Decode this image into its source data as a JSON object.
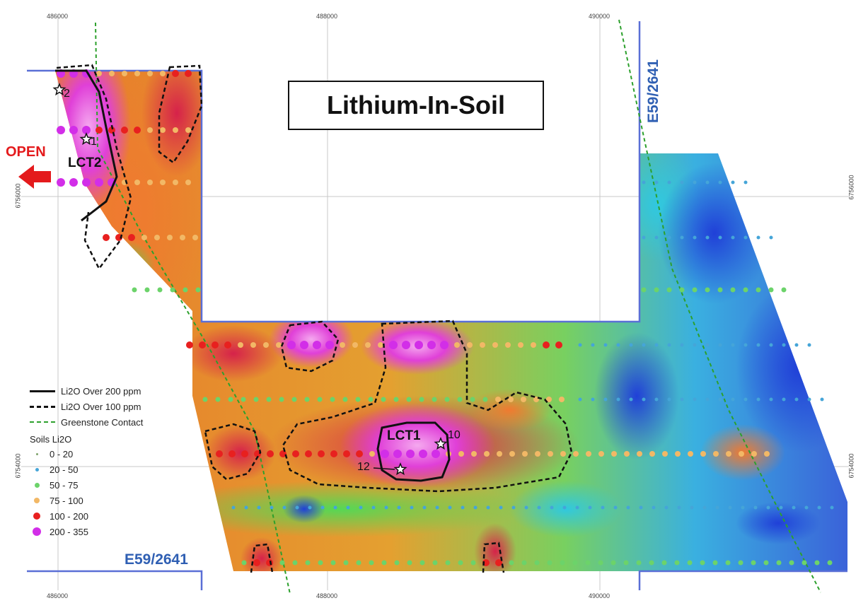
{
  "title": "Lithium-In-Soil",
  "open_label": "OPEN",
  "lease_labels": [
    "E59/2641",
    "E59/2641"
  ],
  "grid": {
    "eastings": [
      "486000",
      "488000",
      "490000"
    ],
    "northings": [
      "6756000",
      "6754000"
    ]
  },
  "anomalies": [
    {
      "name": "LCT2"
    },
    {
      "name": "LCT1"
    }
  ],
  "stars": [
    "2",
    "1",
    "10",
    "12"
  ],
  "legend": {
    "lines": [
      {
        "label": "Li2O Over 200 ppm",
        "style": "solid",
        "color": "#111111"
      },
      {
        "label": "Li2O Over 100 ppm",
        "style": "dashed",
        "color": "#111111"
      },
      {
        "label": "Greenstone Contact",
        "style": "dashed",
        "color": "#2ca02c"
      }
    ],
    "soils_title": "Soils Li2O",
    "classes": [
      {
        "label": "0 - 20",
        "color": "#7fa36b",
        "size": 3
      },
      {
        "label": "20 - 50",
        "color": "#45a5d8",
        "size": 5
      },
      {
        "label": "50 - 75",
        "color": "#6cd36a",
        "size": 7
      },
      {
        "label": "75 - 100",
        "color": "#f2b866",
        "size": 8
      },
      {
        "label": "100 - 200",
        "color": "#e8201f",
        "size": 10
      },
      {
        "label": "200 - 355",
        "color": "#d22ee8",
        "size": 12
      }
    ]
  },
  "colors": {
    "lease": "#2f5fb3",
    "open_arrow": "#e41a1c"
  }
}
